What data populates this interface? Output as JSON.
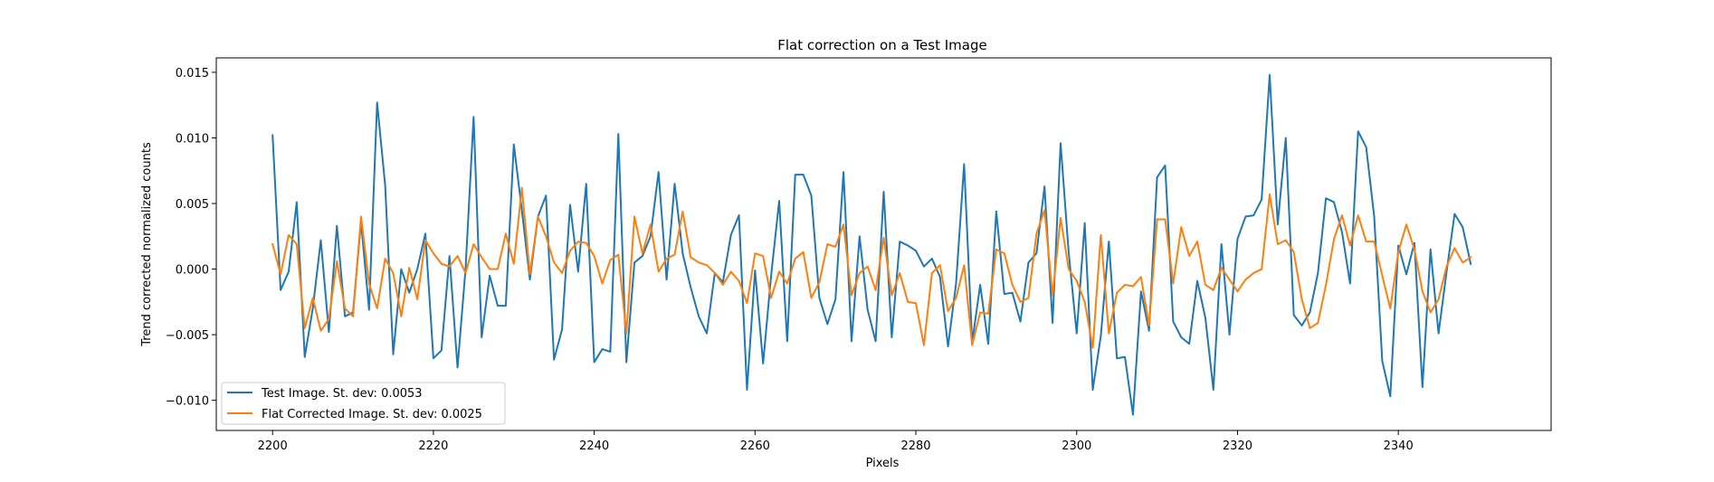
{
  "chart_data": {
    "type": "line",
    "title": "Flat correction on a Test Image",
    "xlabel": "Pixels",
    "ylabel": "Trend corrected normalized counts",
    "xlim": [
      2193,
      2359
    ],
    "ylim": [
      -0.0123,
      0.0161
    ],
    "xticks": [
      2200,
      2220,
      2240,
      2260,
      2280,
      2300,
      2320,
      2340
    ],
    "xtick_labels": [
      "2200",
      "2220",
      "2240",
      "2260",
      "2280",
      "2300",
      "2320",
      "2340"
    ],
    "yticks": [
      -0.01,
      -0.005,
      0.0,
      0.005,
      0.01,
      0.015
    ],
    "ytick_labels": [
      "−0.010",
      "−0.005",
      "0.000",
      "0.005",
      "0.010",
      "0.015"
    ],
    "grid": false,
    "legend_position": "lower-left",
    "x_start": 2200,
    "series": [
      {
        "name": "Test Image. St. dev: 0.0053",
        "color": "#1f77b4",
        "values": [
          0.0102,
          -0.0016,
          -0.0002,
          0.0051,
          -0.0067,
          -0.003,
          0.0022,
          -0.0048,
          0.0033,
          -0.0036,
          -0.0033,
          0.0036,
          -0.0031,
          0.0127,
          0.0064,
          -0.0065,
          0.0,
          -0.0018,
          0.0,
          0.0027,
          -0.0068,
          -0.0062,
          0.001,
          -0.0075,
          0.0,
          0.0116,
          -0.0052,
          -0.0005,
          -0.0028,
          -0.0028,
          0.0095,
          0.0045,
          -0.0008,
          0.004,
          0.0056,
          -0.0069,
          -0.0046,
          0.0049,
          -0.0002,
          0.0065,
          -0.0071,
          -0.0061,
          -0.0063,
          0.0103,
          -0.0071,
          0.0005,
          0.001,
          0.0025,
          0.0074,
          -0.0008,
          0.0065,
          0.0012,
          -0.0014,
          -0.0036,
          -0.0049,
          -0.0003,
          -0.001,
          0.0026,
          0.0041,
          -0.0092,
          -0.0001,
          -0.0072,
          -0.0005,
          0.0052,
          -0.0055,
          0.0072,
          0.0072,
          0.0056,
          -0.0022,
          -0.0042,
          -0.0023,
          0.0074,
          -0.0055,
          0.0025,
          -0.0031,
          -0.0055,
          0.0059,
          -0.0052,
          0.0021,
          0.0018,
          0.0014,
          0.0002,
          0.0008,
          -0.0006,
          -0.0059,
          -0.0011,
          0.008,
          -0.0056,
          -0.0012,
          -0.0057,
          0.0044,
          -0.0019,
          -0.0018,
          -0.004,
          0.0005,
          0.0012,
          0.0063,
          -0.0041,
          0.0096,
          0.0013,
          -0.0049,
          0.0035,
          -0.0092,
          -0.0051,
          0.0021,
          -0.0068,
          -0.0067,
          -0.0111,
          -0.0017,
          -0.0047,
          0.007,
          0.0079,
          -0.004,
          -0.0052,
          -0.0057,
          -0.0009,
          -0.0037,
          -0.0092,
          0.0019,
          -0.005,
          0.0023,
          0.004,
          0.0041,
          0.0053,
          0.0148,
          0.0034,
          0.01,
          -0.0035,
          -0.0043,
          -0.0033,
          -0.0003,
          0.0054,
          0.0051,
          0.0028,
          -0.0011,
          0.0105,
          0.0093,
          0.004,
          -0.007,
          -0.0097,
          0.0018,
          -0.0004,
          0.002,
          -0.009,
          0.0015,
          -0.0049,
          -0.0002,
          0.0042,
          0.0032,
          0.0004
        ]
      },
      {
        "name": "Flat Corrected Image. St. dev: 0.0025",
        "color": "#ff7f0e",
        "values": [
          0.0019,
          -0.0004,
          0.0026,
          0.0019,
          -0.0045,
          -0.0022,
          -0.0047,
          -0.0038,
          0.0006,
          -0.003,
          -0.0036,
          0.004,
          -0.0011,
          -0.003,
          0.0008,
          -0.0003,
          -0.0036,
          0.0001,
          -0.0023,
          0.0022,
          0.0012,
          0.0004,
          0.0002,
          0.001,
          -0.0003,
          0.0019,
          0.0009,
          0.0,
          0.0,
          0.0027,
          0.0004,
          0.0062,
          -0.0004,
          0.004,
          0.0025,
          0.0005,
          -0.0003,
          0.0014,
          0.0021,
          0.002,
          0.001,
          -0.0011,
          0.0007,
          0.0011,
          -0.0049,
          0.004,
          0.0012,
          0.0034,
          -0.0002,
          0.0008,
          0.0011,
          0.0044,
          0.0009,
          0.0005,
          0.0003,
          -0.0003,
          -0.0012,
          -0.0002,
          -0.0009,
          -0.0026,
          0.0012,
          0.001,
          -0.0022,
          -0.0002,
          -0.0011,
          0.0008,
          0.0013,
          -0.0022,
          -0.001,
          0.0019,
          0.0017,
          0.0034,
          -0.002,
          -0.0003,
          0.0002,
          -0.0016,
          0.0024,
          -0.002,
          -0.0003,
          -0.0025,
          -0.0026,
          -0.0058,
          -0.0003,
          0.0003,
          -0.0032,
          -0.0022,
          0.0003,
          -0.0058,
          -0.0033,
          -0.0034,
          0.0015,
          0.0012,
          -0.0012,
          -0.0025,
          -0.0022,
          0.0027,
          0.0045,
          -0.002,
          0.0039,
          0.0,
          -0.0009,
          -0.0025,
          -0.006,
          0.0026,
          -0.0049,
          -0.0018,
          -0.0012,
          -0.0013,
          -0.0006,
          -0.0043,
          0.0038,
          0.0038,
          -0.0011,
          0.0032,
          0.001,
          0.0021,
          -0.0012,
          -0.0016,
          0.0001,
          -0.0008,
          -0.0017,
          -0.0008,
          -0.0003,
          0.0,
          0.0057,
          0.0019,
          0.0022,
          0.0013,
          -0.0023,
          -0.0045,
          -0.0041,
          -0.0012,
          0.0023,
          0.0041,
          0.0018,
          0.0041,
          0.0021,
          0.0021,
          -0.0005,
          -0.003,
          0.0013,
          0.0034,
          0.0015,
          -0.0017,
          -0.0033,
          -0.0023,
          0.0002,
          0.0016,
          0.0005,
          0.0009
        ]
      }
    ]
  }
}
